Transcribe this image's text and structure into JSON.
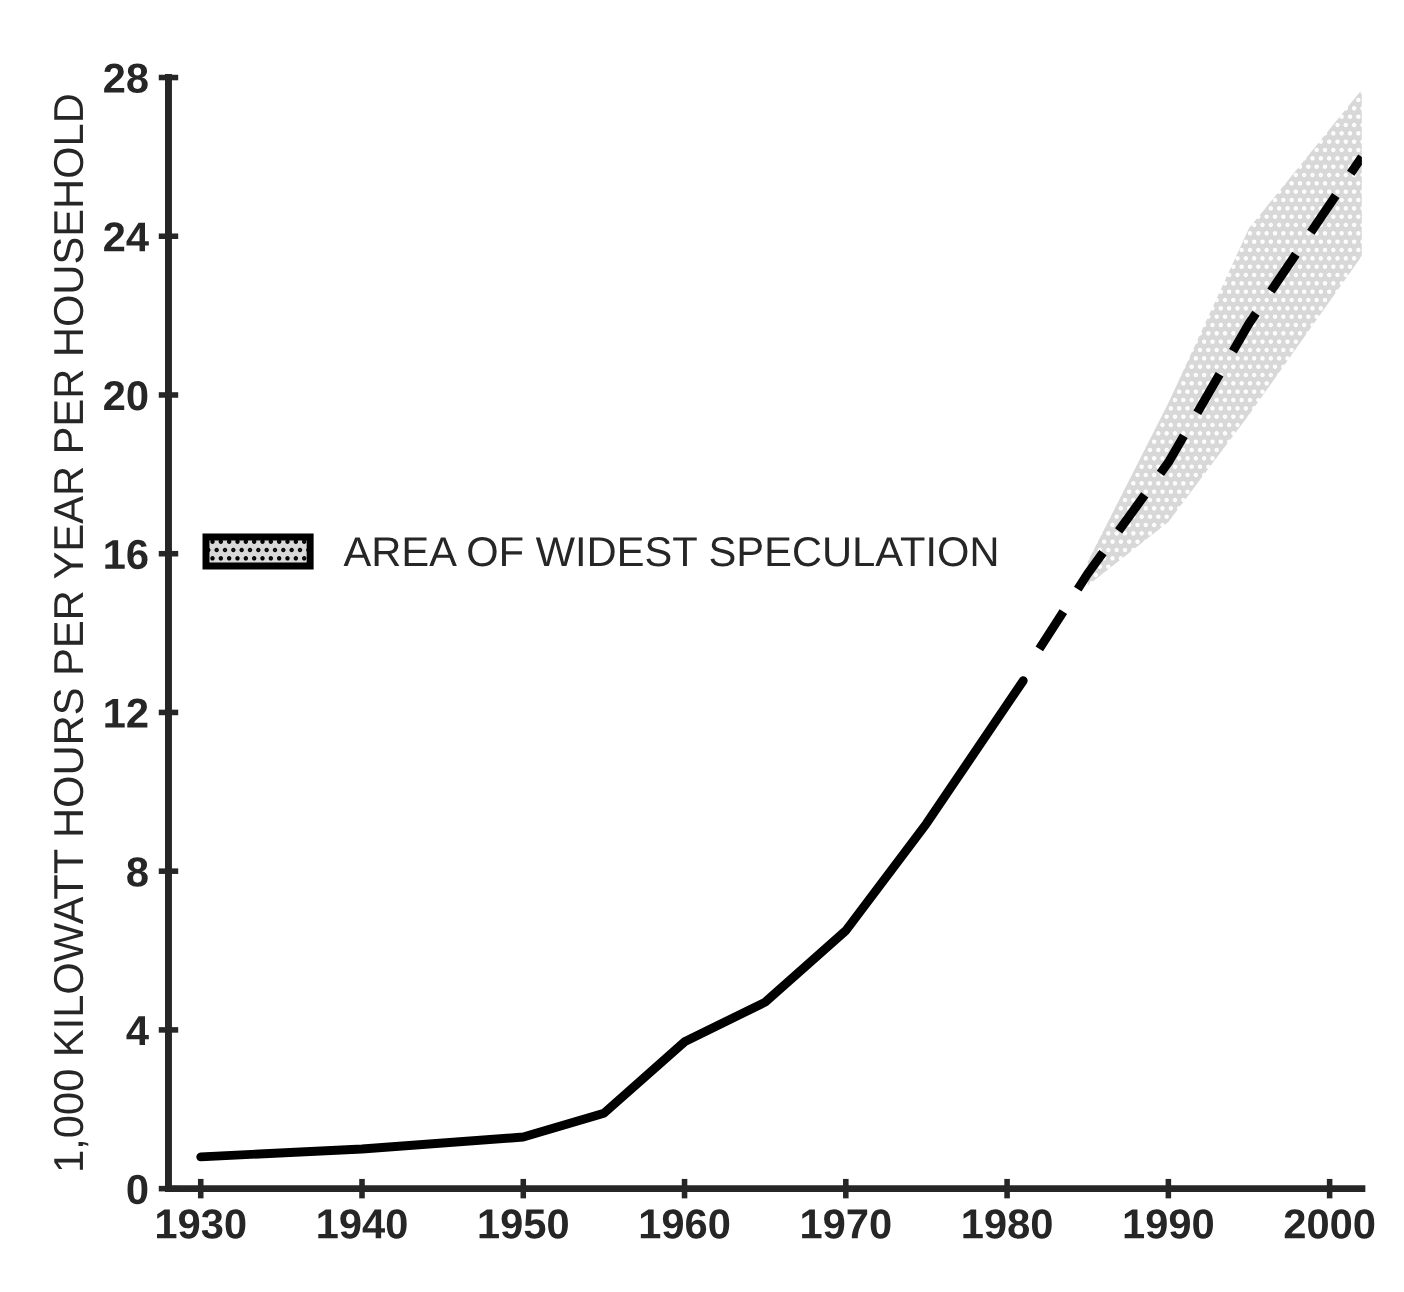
{
  "chart_data": {
    "type": "line",
    "ylabel": "1,000 KILOWATT HOURS PER YEAR PER HOUSEHOLD",
    "series": [
      {
        "color": "#000000",
        "line_style": "solid",
        "x": [
          1930,
          1940,
          1950,
          1955,
          1960,
          1965,
          1970,
          1975,
          1981
        ],
        "values": [
          0.8,
          1.0,
          1.3,
          1.9,
          3.7,
          4.7,
          6.5,
          9.2,
          12.8
        ]
      },
      {
        "name": "AREA OF WIDEST SPECULATION",
        "color": "#000000",
        "line_style": "dashed",
        "x": [
          1982,
          1985,
          1990,
          1995,
          2002
        ],
        "values": [
          13.6,
          15.5,
          18.3,
          21.8,
          26.0
        ],
        "lower": [
          null,
          15.2,
          16.8,
          19.5,
          23.5
        ],
        "upper": [
          null,
          15.8,
          19.8,
          24.2,
          27.7
        ]
      }
    ],
    "xlim": [
      1928,
      2002
    ],
    "ylim": [
      0,
      28
    ],
    "xticks": [
      1930,
      1940,
      1950,
      1960,
      1970,
      1980,
      1990,
      2000
    ],
    "yticks": [
      0,
      4,
      8,
      12,
      16,
      20,
      24,
      28
    ],
    "grid": false,
    "legend": "left",
    "marker": "none"
  }
}
